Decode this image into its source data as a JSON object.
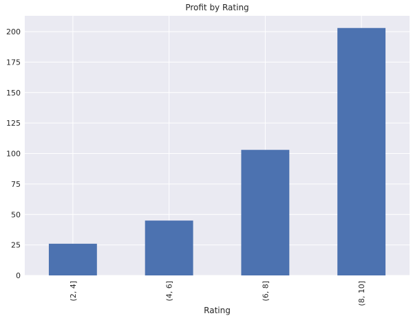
{
  "chart_data": {
    "type": "bar",
    "title": "Profit by Rating",
    "xlabel": "Rating",
    "ylabel": "",
    "categories": [
      "(2, 4]",
      "(4, 6]",
      "(6, 8]",
      "(8, 10]"
    ],
    "values": [
      26,
      45,
      103,
      203
    ],
    "ylim": [
      0,
      213
    ],
    "yticks": [
      0,
      25,
      50,
      75,
      100,
      125,
      150,
      175,
      200
    ],
    "grid": true,
    "legend": "none",
    "x_tick_rotation": "vertical",
    "colors": {
      "bar": "#4c72b0",
      "plot_background": "#eaeaf2",
      "grid": "#ffffff",
      "text": "#262626"
    }
  }
}
